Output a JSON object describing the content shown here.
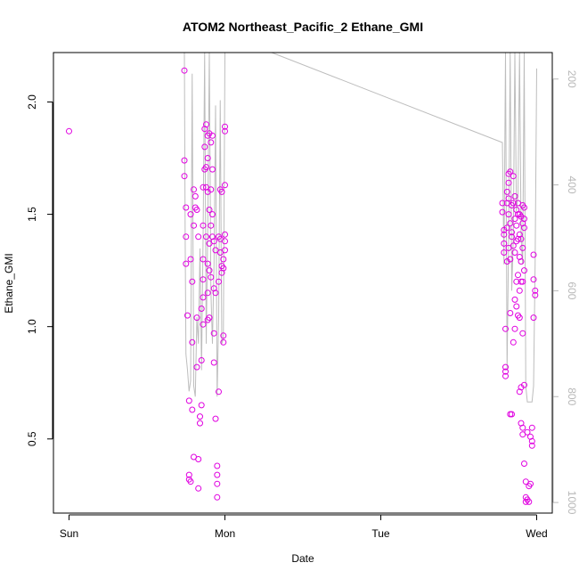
{
  "chart_data": {
    "type": "scatter",
    "title": "ATOM2 Northeast_Pacific_2 Ethane_GMI",
    "xlabel": "Date",
    "ylabel": "Ethane_GMI",
    "x_ticks": [
      "Sun",
      "Mon",
      "Tue",
      "Wed"
    ],
    "y_ticks": [
      "0.5",
      "1.0",
      "1.5",
      "2.0"
    ],
    "y2_ticks": [
      "200",
      "400",
      "600",
      "800",
      "1000"
    ],
    "xlim": [
      -0.1,
      3.1
    ],
    "ylim": [
      0.17,
      2.22
    ],
    "y2lim_reversed": [
      1020,
      150
    ],
    "colors": {
      "points": "#e000e0",
      "pressure_line": "#bdbdbd",
      "axis": "#000000",
      "right_axis": "#b8b8b8"
    },
    "series": [
      {
        "name": "",
        "kind": "points",
        "points": [
          [
            0.0,
            1.87
          ],
          [
            0.74,
            2.14
          ],
          [
            0.74,
            1.74
          ],
          [
            0.74,
            1.67
          ],
          [
            0.75,
            1.53
          ],
          [
            0.75,
            1.4
          ],
          [
            0.75,
            1.28
          ],
          [
            0.76,
            1.05
          ],
          [
            0.77,
            0.67
          ],
          [
            0.77,
            0.34
          ],
          [
            0.77,
            0.32
          ],
          [
            0.78,
            0.31
          ],
          [
            0.78,
            1.5
          ],
          [
            0.78,
            1.3
          ],
          [
            0.79,
            0.93
          ],
          [
            0.79,
            1.2
          ],
          [
            0.79,
            0.63
          ],
          [
            0.8,
            1.61
          ],
          [
            0.8,
            1.45
          ],
          [
            0.8,
            0.42
          ],
          [
            0.81,
            1.58
          ],
          [
            0.81,
            1.53
          ],
          [
            0.82,
            1.52
          ],
          [
            0.82,
            1.04
          ],
          [
            0.82,
            0.82
          ],
          [
            0.83,
            1.4
          ],
          [
            0.83,
            0.41
          ],
          [
            0.83,
            0.28
          ],
          [
            0.84,
            0.57
          ],
          [
            0.84,
            0.6
          ],
          [
            0.85,
            0.65
          ],
          [
            0.85,
            1.08
          ],
          [
            0.85,
            0.85
          ],
          [
            0.86,
            1.62
          ],
          [
            0.86,
            1.45
          ],
          [
            0.86,
            1.3
          ],
          [
            0.86,
            1.21
          ],
          [
            0.86,
            1.01
          ],
          [
            0.86,
            1.13
          ],
          [
            0.87,
            1.8
          ],
          [
            0.87,
            1.7
          ],
          [
            0.87,
            1.88
          ],
          [
            0.88,
            1.9
          ],
          [
            0.88,
            1.71
          ],
          [
            0.88,
            1.62
          ],
          [
            0.88,
            1.4
          ],
          [
            0.89,
            1.85
          ],
          [
            0.89,
            1.75
          ],
          [
            0.89,
            1.6
          ],
          [
            0.89,
            1.28
          ],
          [
            0.89,
            1.15
          ],
          [
            0.89,
            1.03
          ],
          [
            0.9,
            1.86
          ],
          [
            0.9,
            1.52
          ],
          [
            0.9,
            1.37
          ],
          [
            0.9,
            1.25
          ],
          [
            0.9,
            1.04
          ],
          [
            0.91,
            1.82
          ],
          [
            0.91,
            1.61
          ],
          [
            0.91,
            1.45
          ],
          [
            0.91,
            1.22
          ],
          [
            0.92,
            1.85
          ],
          [
            0.92,
            1.7
          ],
          [
            0.92,
            1.5
          ],
          [
            0.92,
            1.4
          ],
          [
            0.93,
            1.38
          ],
          [
            0.93,
            1.17
          ],
          [
            0.93,
            0.97
          ],
          [
            0.93,
            0.84
          ],
          [
            0.94,
            1.34
          ],
          [
            0.94,
            1.15
          ],
          [
            0.94,
            0.59
          ],
          [
            0.95,
            0.38
          ],
          [
            0.95,
            0.34
          ],
          [
            0.95,
            0.3
          ],
          [
            0.95,
            0.24
          ],
          [
            0.96,
            0.71
          ],
          [
            0.96,
            1.2
          ],
          [
            0.96,
            1.4
          ],
          [
            0.97,
            1.61
          ],
          [
            0.97,
            1.39
          ],
          [
            0.97,
            1.33
          ],
          [
            0.98,
            1.27
          ],
          [
            0.98,
            1.24
          ],
          [
            0.98,
            1.6
          ],
          [
            0.99,
            1.3
          ],
          [
            0.99,
            1.26
          ],
          [
            0.99,
            0.96
          ],
          [
            0.99,
            0.93
          ],
          [
            1.0,
            1.34
          ],
          [
            1.0,
            1.38
          ],
          [
            1.0,
            1.41
          ],
          [
            1.0,
            1.63
          ],
          [
            1.0,
            1.87
          ],
          [
            1.0,
            1.89
          ],
          [
            2.78,
            1.55
          ],
          [
            2.78,
            1.51
          ],
          [
            2.79,
            1.43
          ],
          [
            2.79,
            1.41
          ],
          [
            2.79,
            1.37
          ],
          [
            2.79,
            1.33
          ],
          [
            2.8,
            0.99
          ],
          [
            2.8,
            0.82
          ],
          [
            2.8,
            0.8
          ],
          [
            2.8,
            0.78
          ],
          [
            2.81,
            1.6
          ],
          [
            2.81,
            1.44
          ],
          [
            2.81,
            1.29
          ],
          [
            2.81,
            1.55
          ],
          [
            2.82,
            1.68
          ],
          [
            2.82,
            1.64
          ],
          [
            2.82,
            1.57
          ],
          [
            2.82,
            1.5
          ],
          [
            2.82,
            1.35
          ],
          [
            2.83,
            1.69
          ],
          [
            2.83,
            1.46
          ],
          [
            2.83,
            1.3
          ],
          [
            2.83,
            1.06
          ],
          [
            2.83,
            0.61
          ],
          [
            2.84,
            0.61
          ],
          [
            2.84,
            1.4
          ],
          [
            2.84,
            1.54
          ],
          [
            2.84,
            1.42
          ],
          [
            2.85,
            1.55
          ],
          [
            2.85,
            1.67
          ],
          [
            2.85,
            1.36
          ],
          [
            2.85,
            0.93
          ],
          [
            2.86,
            1.58
          ],
          [
            2.86,
            1.48
          ],
          [
            2.86,
            1.33
          ],
          [
            2.86,
            1.12
          ],
          [
            2.86,
            0.99
          ],
          [
            2.87,
            1.52
          ],
          [
            2.87,
            1.45
          ],
          [
            2.87,
            1.38
          ],
          [
            2.87,
            1.2
          ],
          [
            2.87,
            1.09
          ],
          [
            2.88,
            1.55
          ],
          [
            2.88,
            1.5
          ],
          [
            2.88,
            1.39
          ],
          [
            2.88,
            1.23
          ],
          [
            2.88,
            1.05
          ],
          [
            2.89,
            1.5
          ],
          [
            2.89,
            1.41
          ],
          [
            2.89,
            1.31
          ],
          [
            2.89,
            1.16
          ],
          [
            2.89,
            1.04
          ],
          [
            2.89,
            0.71
          ],
          [
            2.9,
            1.49
          ],
          [
            2.9,
            1.39
          ],
          [
            2.9,
            1.29
          ],
          [
            2.9,
            1.2
          ],
          [
            2.9,
            0.73
          ],
          [
            2.9,
            0.57
          ],
          [
            2.91,
            1.54
          ],
          [
            2.91,
            1.46
          ],
          [
            2.91,
            1.35
          ],
          [
            2.91,
            1.2
          ],
          [
            2.91,
            0.97
          ],
          [
            2.91,
            0.55
          ],
          [
            2.91,
            0.52
          ],
          [
            2.92,
            1.53
          ],
          [
            2.92,
            1.48
          ],
          [
            2.92,
            1.44
          ],
          [
            2.92,
            1.25
          ],
          [
            2.92,
            0.74
          ],
          [
            2.92,
            0.39
          ],
          [
            2.93,
            0.31
          ],
          [
            2.93,
            0.24
          ],
          [
            2.93,
            0.22
          ],
          [
            2.94,
            0.23
          ],
          [
            2.94,
            0.53
          ],
          [
            2.95,
            0.22
          ],
          [
            2.95,
            0.29
          ],
          [
            2.96,
            0.3
          ],
          [
            2.96,
            0.51
          ],
          [
            2.97,
            0.47
          ],
          [
            2.97,
            0.55
          ],
          [
            2.97,
            0.49
          ],
          [
            2.98,
            1.32
          ],
          [
            2.98,
            1.21
          ],
          [
            2.98,
            1.04
          ],
          [
            2.99,
            1.16
          ],
          [
            2.99,
            1.14
          ]
        ]
      },
      {
        "name": "",
        "kind": "pressure-line",
        "axis": "right",
        "points": [
          [
            0.74,
            150
          ],
          [
            0.745,
            500
          ],
          [
            0.75,
            720
          ],
          [
            0.76,
            750
          ],
          [
            0.77,
            790
          ],
          [
            0.78,
            770
          ],
          [
            0.79,
            190
          ],
          [
            0.8,
            780
          ],
          [
            0.81,
            800
          ],
          [
            0.82,
            650
          ],
          [
            0.83,
            700
          ],
          [
            0.84,
            520
          ],
          [
            0.85,
            750
          ],
          [
            0.86,
            500
          ],
          [
            0.87,
            150
          ],
          [
            0.88,
            700
          ],
          [
            0.89,
            480
          ],
          [
            0.9,
            150
          ],
          [
            0.91,
            600
          ],
          [
            0.92,
            700
          ],
          [
            0.93,
            550
          ],
          [
            0.94,
            250
          ],
          [
            0.95,
            800
          ],
          [
            0.96,
            650
          ],
          [
            0.97,
            240
          ],
          [
            0.98,
            700
          ],
          [
            0.99,
            690
          ],
          [
            1.0,
            150
          ],
          [
            1.3,
            150
          ],
          [
            2.78,
            320
          ],
          [
            2.79,
            550
          ],
          [
            2.8,
            150
          ],
          [
            2.81,
            750
          ],
          [
            2.82,
            500
          ],
          [
            2.83,
            150
          ],
          [
            2.84,
            600
          ],
          [
            2.85,
            500
          ],
          [
            2.86,
            150
          ],
          [
            2.87,
            450
          ],
          [
            2.88,
            420
          ],
          [
            2.89,
            150
          ],
          [
            2.9,
            500
          ],
          [
            2.91,
            550
          ],
          [
            2.92,
            150
          ],
          [
            2.93,
            780
          ],
          [
            2.94,
            810
          ],
          [
            2.95,
            810
          ],
          [
            2.96,
            810
          ],
          [
            2.97,
            810
          ],
          [
            2.98,
            780
          ],
          [
            2.99,
            550
          ],
          [
            3.0,
            180
          ]
        ]
      }
    ]
  }
}
